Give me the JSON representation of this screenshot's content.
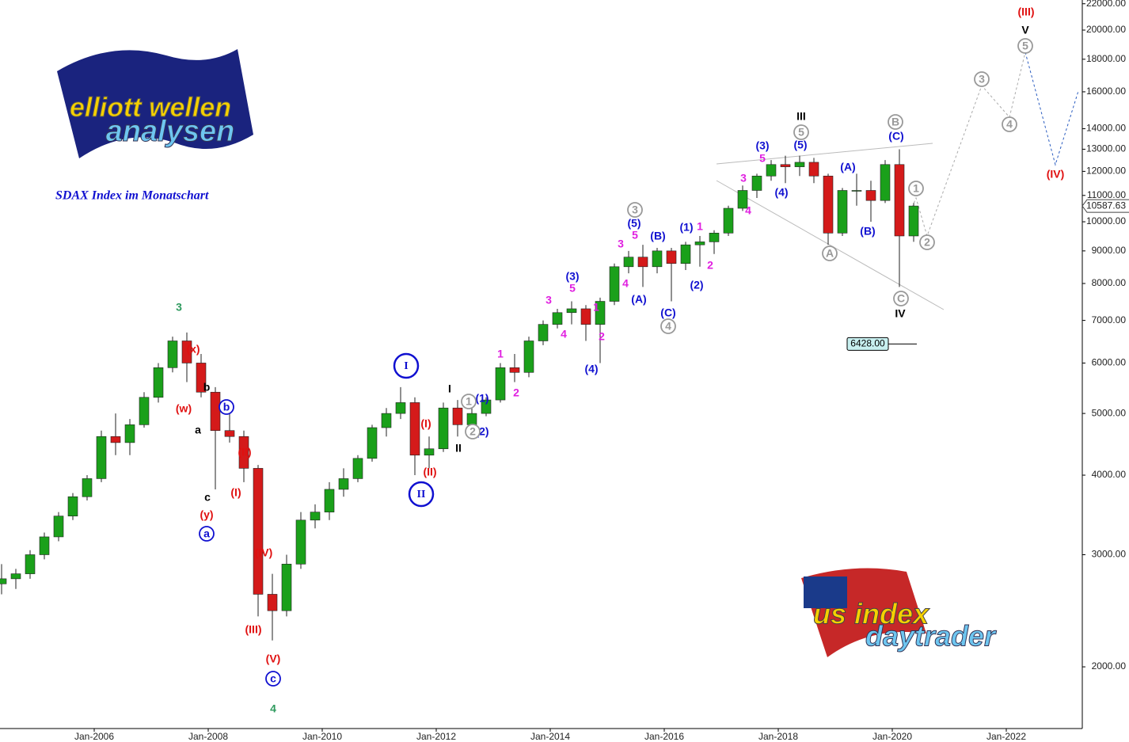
{
  "chart_data": {
    "type": "candlestick",
    "subtitle": "SDAX Index im Monatschart",
    "logos": [
      "elliott wellen",
      "analysen",
      "us index",
      "daytrader"
    ],
    "log_scale": true,
    "up_color": "#1aa01a",
    "down_color": "#d41a1a",
    "x": [
      "2004-04",
      "2004-07",
      "2004-10",
      "2005-01",
      "2005-04",
      "2005-07",
      "2005-10",
      "2006-01",
      "2006-04",
      "2006-07",
      "2006-10",
      "2007-01",
      "2007-04",
      "2007-07",
      "2007-10",
      "2008-01",
      "2008-04",
      "2008-07",
      "2008-10",
      "2009-01",
      "2009-04",
      "2009-07",
      "2009-10",
      "2010-01",
      "2010-04",
      "2010-07",
      "2010-10",
      "2011-01",
      "2011-04",
      "2011-07",
      "2011-10",
      "2012-01",
      "2012-04",
      "2012-07",
      "2012-10",
      "2013-01",
      "2013-04",
      "2013-07",
      "2013-10",
      "2014-01",
      "2014-04",
      "2014-07",
      "2014-10",
      "2015-01",
      "2015-04",
      "2015-07",
      "2015-10",
      "2016-01",
      "2016-04",
      "2016-07",
      "2016-10",
      "2017-01",
      "2017-04",
      "2017-07",
      "2017-10",
      "2018-01",
      "2018-04",
      "2018-07",
      "2018-10",
      "2019-01",
      "2019-04",
      "2019-07",
      "2019-10",
      "2020-01",
      "2020-04"
    ],
    "open": [
      2700,
      2750,
      2800,
      3000,
      3200,
      3450,
      3700,
      3950,
      4600,
      4500,
      4800,
      5300,
      5900,
      6500,
      6000,
      5400,
      4700,
      4600,
      4100,
      2600,
      2450,
      2900,
      3400,
      3500,
      3800,
      3950,
      4250,
      4750,
      5000,
      5200,
      4300,
      4400,
      5100,
      4800,
      5000,
      5250,
      5900,
      5800,
      6500,
      6900,
      7200,
      7300,
      6900,
      7500,
      8500,
      8800,
      8500,
      9000,
      8600,
      9200,
      9300,
      9600,
      10500,
      11200,
      11800,
      12300,
      12200,
      12400,
      11800,
      9600,
      11200,
      11200,
      10800,
      12300,
      9500
    ],
    "high": [
      2900,
      2850,
      3050,
      3250,
      3500,
      3750,
      4000,
      4700,
      5000,
      4900,
      5400,
      6000,
      6600,
      6700,
      6200,
      5500,
      5000,
      4700,
      4150,
      2800,
      3000,
      3500,
      3600,
      3900,
      4100,
      4300,
      4800,
      5100,
      5500,
      5300,
      4600,
      5200,
      5250,
      5100,
      5300,
      6000,
      6200,
      6600,
      7000,
      7300,
      7500,
      7400,
      7600,
      8600,
      9000,
      9200,
      9100,
      9100,
      9300,
      9500,
      9700,
      10600,
      11400,
      11900,
      12500,
      12700,
      12700,
      12600,
      11900,
      11300,
      11900,
      11600,
      12500,
      13000,
      10700
    ],
    "low": [
      2600,
      2650,
      2750,
      2950,
      3150,
      3400,
      3650,
      3900,
      4300,
      4300,
      4750,
      5200,
      5800,
      5600,
      5300,
      3800,
      4500,
      3900,
      2400,
      2200,
      2400,
      2850,
      3300,
      3400,
      3700,
      3900,
      4200,
      4600,
      4900,
      4000,
      4100,
      4350,
      4600,
      4700,
      4950,
      5200,
      5600,
      5700,
      6400,
      6800,
      6900,
      6500,
      6000,
      7400,
      8300,
      7900,
      8300,
      7500,
      8400,
      8500,
      8900,
      9500,
      10400,
      10900,
      11600,
      11500,
      11800,
      11500,
      9200,
      9500,
      10600,
      10000,
      10700,
      7900,
      9300
    ],
    "close": [
      2750,
      2800,
      3000,
      3200,
      3450,
      3700,
      3950,
      4600,
      4500,
      4800,
      5300,
      5900,
      6500,
      6000,
      5400,
      4700,
      4600,
      4100,
      2600,
      2450,
      2900,
      3400,
      3500,
      3800,
      3950,
      4250,
      4750,
      5000,
      5200,
      4300,
      4400,
      5100,
      4800,
      5000,
      5250,
      5900,
      5800,
      6500,
      6900,
      7200,
      7300,
      6900,
      7500,
      8500,
      8800,
      8500,
      9000,
      8600,
      9200,
      9300,
      9600,
      10500,
      11200,
      11800,
      12300,
      12200,
      12400,
      11800,
      9600,
      11200,
      11200,
      10800,
      12300,
      9500,
      10587.63
    ],
    "level": {
      "value": 6428,
      "label": "6428.00"
    },
    "ylim": [
      1600,
      22300
    ],
    "yticks": [
      {
        "value": 2000,
        "label": "2000.00"
      },
      {
        "value": 3000,
        "label": "3000.00"
      },
      {
        "value": 4000,
        "label": "4000.00"
      },
      {
        "value": 5000,
        "label": "5000.00"
      },
      {
        "value": 6000,
        "label": "6000.00"
      },
      {
        "value": 7000,
        "label": "7000.00"
      },
      {
        "value": 8000,
        "label": "8000.00"
      },
      {
        "value": 9000,
        "label": "9000.00"
      },
      {
        "value": 10000,
        "label": "10000.00"
      },
      {
        "value": 11000,
        "label": "11000.00"
      },
      {
        "value": 12000,
        "label": "12000.00"
      },
      {
        "value": 13000,
        "label": "13000.00"
      },
      {
        "value": 14000,
        "label": "14000.00"
      },
      {
        "value": 16000,
        "label": "16000.00"
      },
      {
        "value": 18000,
        "label": "18000.00"
      },
      {
        "value": 20000,
        "label": "20000.00"
      },
      {
        "value": 22000,
        "label": "22000.00"
      }
    ],
    "xticks": [
      {
        "value": "2006-01",
        "label": "Jan-2006"
      },
      {
        "value": "2008-01",
        "label": "Jan-2008"
      },
      {
        "value": "2010-01",
        "label": "Jan-2010"
      },
      {
        "value": "2012-01",
        "label": "Jan-2012"
      },
      {
        "value": "2014-01",
        "label": "Jan-2014"
      },
      {
        "value": "2016-01",
        "label": "Jan-2016"
      },
      {
        "value": "2018-01",
        "label": "Jan-2018"
      },
      {
        "value": "2020-01",
        "label": "Jan-2020"
      },
      {
        "value": "2022-01",
        "label": "Jan-2022"
      }
    ],
    "annotations": [
      {
        "text": "3",
        "color": "#2e9a5e"
      },
      {
        "text": "4",
        "color": "#2e9a5e"
      },
      {
        "text": "(x)",
        "color": "#e01010"
      },
      {
        "text": "(w)",
        "color": "#e01010"
      },
      {
        "text": "(y)",
        "color": "#e01010"
      },
      {
        "text": "(II)",
        "color": "#e01010"
      },
      {
        "text": "(I)",
        "color": "#e01010"
      },
      {
        "text": "(IV)",
        "color": "#e01010"
      },
      {
        "text": "(III)",
        "color": "#e01010"
      },
      {
        "text": "(V)",
        "color": "#e01010"
      },
      {
        "text": "(I)",
        "color": "#e01010"
      },
      {
        "text": "(II)",
        "color": "#e01010"
      },
      {
        "text": "(III)",
        "color": "#e01010"
      },
      {
        "text": "(IV)",
        "color": "#e01010"
      },
      {
        "text": "b",
        "color": "#000000"
      },
      {
        "text": "a",
        "color": "#000000"
      },
      {
        "text": "c",
        "color": "#000000"
      },
      {
        "text": "I",
        "color": "#000000"
      },
      {
        "text": "II",
        "color": "#000000"
      },
      {
        "text": "III",
        "color": "#000000"
      },
      {
        "text": "IV",
        "color": "#000000"
      },
      {
        "text": "V",
        "color": "#000000"
      },
      {
        "text": "b",
        "color": "#1010d0",
        "circled": true
      },
      {
        "text": "a",
        "color": "#1010d0",
        "circled": true
      },
      {
        "text": "c",
        "color": "#1010d0",
        "circled": true
      },
      {
        "text": "I",
        "color": "#1010d0",
        "circled": true
      },
      {
        "text": "II",
        "color": "#1010d0",
        "circled": true
      },
      {
        "text": "(1)",
        "color": "#1010d0"
      },
      {
        "text": "(2)",
        "color": "#1010d0"
      },
      {
        "text": "(3)",
        "color": "#1010d0"
      },
      {
        "text": "(5)",
        "color": "#1010d0"
      },
      {
        "text": "(4)",
        "color": "#1010d0"
      },
      {
        "text": "(A)",
        "color": "#1010d0"
      },
      {
        "text": "(B)",
        "color": "#1010d0"
      },
      {
        "text": "(C)",
        "color": "#1010d0"
      },
      {
        "text": "(1)",
        "color": "#1010d0"
      },
      {
        "text": "(2)",
        "color": "#1010d0"
      },
      {
        "text": "(3)",
        "color": "#1010d0"
      },
      {
        "text": "(5)",
        "color": "#1010d0"
      },
      {
        "text": "(4)",
        "color": "#1010d0"
      },
      {
        "text": "(A)",
        "color": "#1010d0"
      },
      {
        "text": "(B)",
        "color": "#1010d0"
      },
      {
        "text": "(C)",
        "color": "#1010d0"
      },
      {
        "text": "1",
        "color": "#e020e0"
      },
      {
        "text": "2",
        "color": "#e020e0"
      },
      {
        "text": "3",
        "color": "#e020e0"
      },
      {
        "text": "4",
        "color": "#e020e0"
      },
      {
        "text": "5",
        "color": "#e020e0"
      },
      {
        "text": "1",
        "color": "#e020e0"
      },
      {
        "text": "2",
        "color": "#e020e0"
      },
      {
        "text": "3",
        "color": "#e020e0"
      },
      {
        "text": "4",
        "color": "#e020e0"
      },
      {
        "text": "5",
        "color": "#e020e0"
      },
      {
        "text": "1",
        "color": "#e020e0"
      },
      {
        "text": "2",
        "color": "#e020e0"
      },
      {
        "text": "3",
        "color": "#e020e0"
      },
      {
        "text": "4",
        "color": "#e020e0"
      },
      {
        "text": "5",
        "color": "#e020e0"
      },
      {
        "text": "1",
        "color": "#999999",
        "circled": true
      },
      {
        "text": "2",
        "color": "#999999",
        "circled": true
      },
      {
        "text": "3",
        "color": "#999999",
        "circled": true
      },
      {
        "text": "4",
        "color": "#999999",
        "circled": true
      },
      {
        "text": "5",
        "color": "#999999",
        "circled": true
      },
      {
        "text": "A",
        "color": "#999999",
        "circled": true
      },
      {
        "text": "B",
        "color": "#999999",
        "circled": true
      },
      {
        "text": "C",
        "color": "#999999",
        "circled": true
      },
      {
        "text": "1",
        "color": "#999999",
        "circled": true
      },
      {
        "text": "2",
        "color": "#999999",
        "circled": true
      },
      {
        "text": "3",
        "color": "#999999",
        "circled": true
      },
      {
        "text": "4",
        "color": "#999999",
        "circled": true
      },
      {
        "text": "5",
        "color": "#999999",
        "circled": true
      }
    ]
  }
}
